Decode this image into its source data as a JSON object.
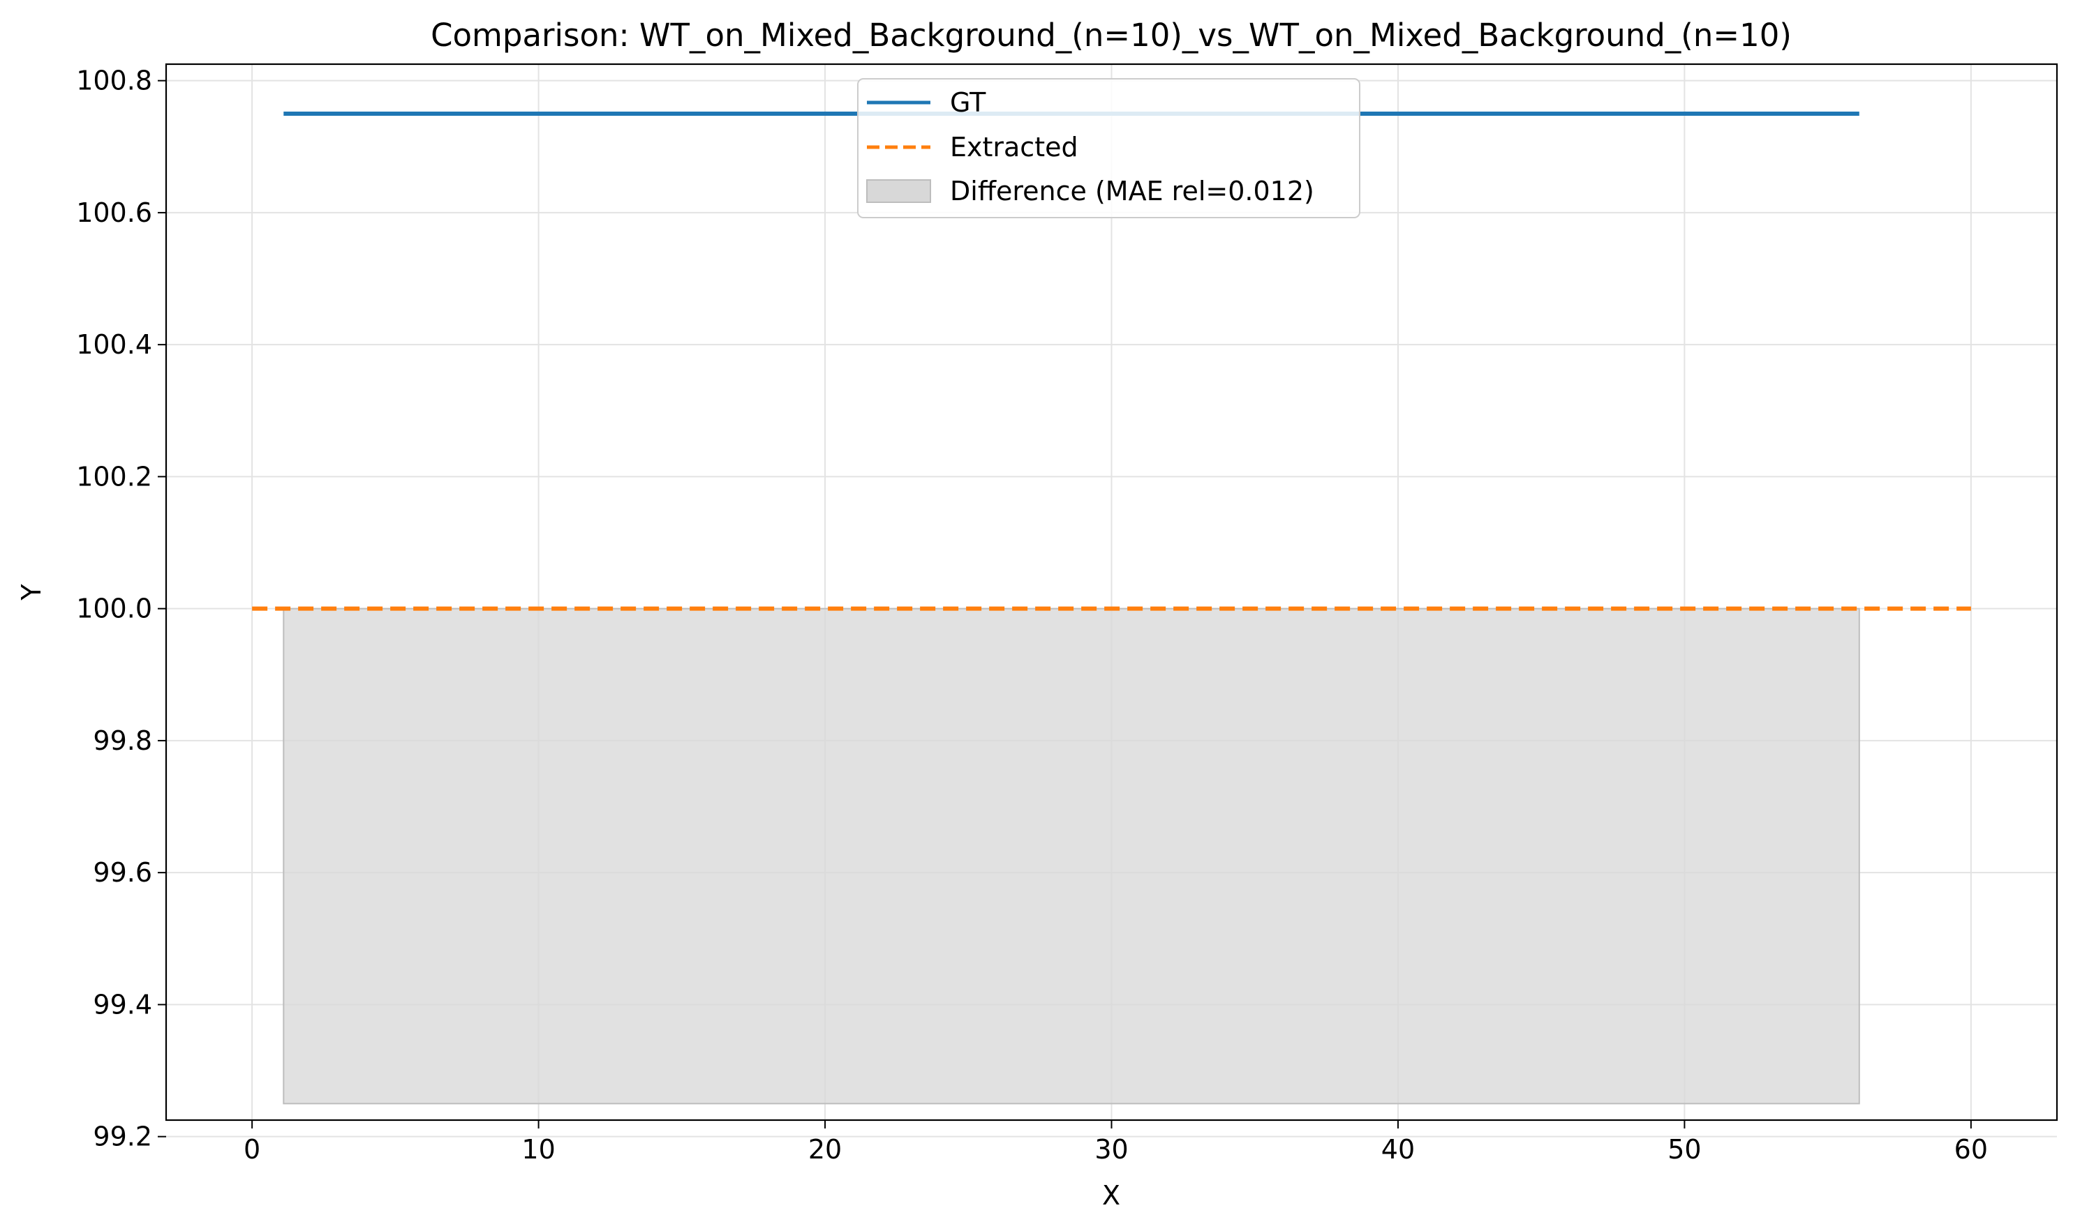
{
  "chart_data": {
    "type": "line",
    "title": "Comparison: WT_on_Mixed_Background_(n=10)_vs_WT_on_Mixed_Background_(n=10)",
    "xlabel": "X",
    "ylabel": "Y",
    "xlim": [
      -3,
      63
    ],
    "ylim": [
      99.225,
      100.825
    ],
    "xticks": [
      0,
      10,
      20,
      30,
      40,
      50,
      60
    ],
    "xtick_labels": [
      "0",
      "10",
      "20",
      "30",
      "40",
      "50",
      "60"
    ],
    "yticks": [
      99.2,
      99.4,
      99.6,
      99.8,
      100.0,
      100.2,
      100.4,
      100.6,
      100.8
    ],
    "ytick_labels": [
      "99.2",
      "99.4",
      "99.6",
      "99.8",
      "100.0",
      "100.2",
      "100.4",
      "100.6",
      "100.8"
    ],
    "grid": true,
    "legend_position": "upper-center",
    "series": [
      {
        "name": "GT",
        "style": "solid",
        "color": "#1f77b4",
        "x": [
          1.1,
          56.1
        ],
        "y": [
          100.75,
          100.75
        ]
      },
      {
        "name": "Extracted",
        "style": "dashed",
        "color": "#ff7f0e",
        "x": [
          0,
          60
        ],
        "y": [
          100.0,
          100.0
        ]
      }
    ],
    "fill_region": {
      "name": "Difference (MAE rel=0.012)",
      "color": "#d8d8d8",
      "edge_color": "#bdbdbd",
      "x": [
        1.1,
        56.1
      ],
      "y_low": 99.25,
      "y_high": 100.0
    }
  }
}
